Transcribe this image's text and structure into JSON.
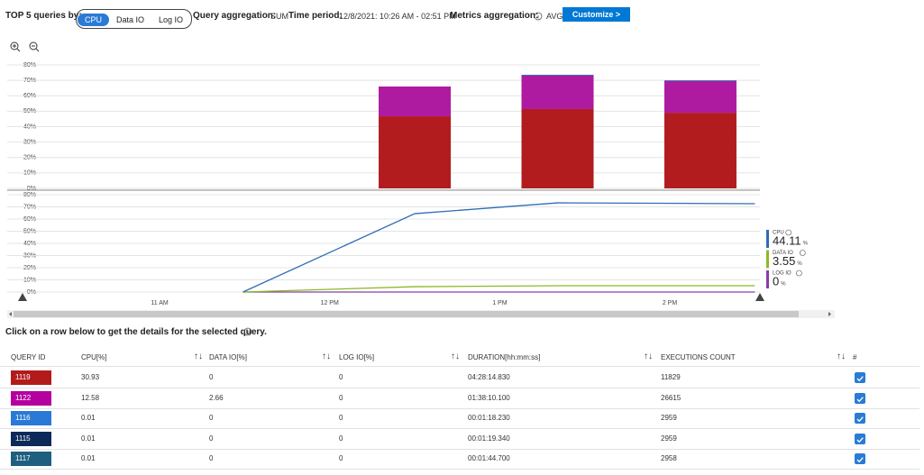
{
  "header": {
    "label": "TOP 5 queries by:",
    "tabs": [
      "CPU",
      "Data IO",
      "Log IO"
    ],
    "selected_tab": 0,
    "query_aggregation_label": "Query aggregation:",
    "query_aggregation": "SUM",
    "time_period_label": "Time period:",
    "time_period": "12/8/2021: 10:26 AM - 02:51 PM",
    "metrics_aggregation_label": "Metrics aggregation:",
    "metrics_aggregation": "AVG",
    "button": "Customize >"
  },
  "chart_data": [
    {
      "type": "bar",
      "stacked": true,
      "xlim": [
        10.3,
        14.53
      ],
      "x": [
        12.5,
        13.34,
        14.18
      ],
      "ylim": [
        0,
        80
      ],
      "grid": true,
      "yticks": [
        {
          "value": 0,
          "label": "0%"
        },
        {
          "value": 10,
          "label": "10%"
        },
        {
          "value": 20,
          "label": "20%"
        },
        {
          "value": 30,
          "label": "30%"
        },
        {
          "value": 40,
          "label": "40%"
        },
        {
          "value": 50,
          "label": "50%"
        },
        {
          "value": 60,
          "label": "60%"
        },
        {
          "value": 70,
          "label": "70%"
        },
        {
          "value": 80,
          "label": "80%"
        }
      ],
      "series": [
        {
          "color": "#b21c1f",
          "values": [
            46.7,
            51.4,
            49.0
          ]
        },
        {
          "color": "#ae1ba0",
          "values": [
            19.3,
            21.6,
            20.5
          ]
        },
        {
          "color": "#2f6db5",
          "values": [
            0,
            0.6,
            0.5
          ]
        }
      ]
    },
    {
      "type": "line",
      "xlim": [
        10.3,
        14.53
      ],
      "x": [
        11.49,
        12.5,
        13.34,
        14.18,
        14.5
      ],
      "ylim": [
        0,
        80
      ],
      "grid": true,
      "unit": "%",
      "yticks": [
        {
          "value": 0,
          "label": "0%"
        },
        {
          "value": 10,
          "label": "10%"
        },
        {
          "value": 20,
          "label": "20%"
        },
        {
          "value": 30,
          "label": "30%"
        },
        {
          "value": 40,
          "label": "40%"
        },
        {
          "value": 50,
          "label": "50%"
        },
        {
          "value": 60,
          "label": "60%"
        },
        {
          "value": 70,
          "label": "70%"
        },
        {
          "value": 80,
          "label": "80%"
        }
      ],
      "xticks": [
        {
          "value": 11,
          "label": "11 AM"
        },
        {
          "value": 12,
          "label": "12 PM"
        },
        {
          "value": 13,
          "label": "1 PM"
        },
        {
          "value": 14,
          "label": "2 PM"
        }
      ],
      "series": [
        {
          "name": "CPU",
          "color": "#2f6db5",
          "summary": 44.11,
          "values": [
            0,
            64.4,
            73.3,
            72.8,
            72.6
          ]
        },
        {
          "name": "DATA IO",
          "color": "#8bb928",
          "summary": 3.55,
          "values": [
            0,
            4.4,
            5.2,
            5.2,
            5.2
          ]
        },
        {
          "name": "LOG IO",
          "color": "#8a3ca8",
          "summary": 0,
          "values": [
            0,
            0,
            0,
            0,
            0
          ]
        }
      ]
    }
  ],
  "instruction": "Click on a row below to get the details for the selected query.",
  "table": {
    "columns": [
      "QUERY ID",
      "CPU[%]",
      "DATA IO[%]",
      "LOG IO[%]",
      "DURATION[hh:mm:ss]",
      "EXECUTIONS COUNT",
      "#"
    ],
    "rows": [
      {
        "id": "1119",
        "color": "#b31b1b",
        "cells": [
          30.93,
          0,
          0,
          "04:28:14.830",
          11829
        ]
      },
      {
        "id": "1122",
        "color": "#b4009e",
        "cells": [
          12.58,
          2.66,
          0,
          "01:38:10.100",
          26615
        ]
      },
      {
        "id": "1116",
        "color": "#2b79d6",
        "cells": [
          0.01,
          0,
          0,
          "00:01:18.230",
          2959
        ]
      },
      {
        "id": "1115",
        "color": "#0b2a5a",
        "cells": [
          0.01,
          0,
          0,
          "00:01:19.340",
          2959
        ]
      },
      {
        "id": "1117",
        "color": "#1e5f80",
        "cells": [
          0.01,
          0,
          0,
          "00:01:44.700",
          2958
        ]
      }
    ]
  }
}
